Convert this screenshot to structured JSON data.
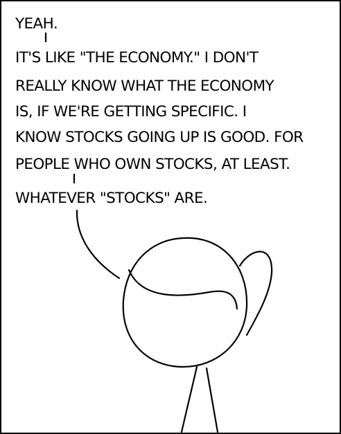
{
  "dialogue": {
    "line_1": "YEAH.",
    "line_2": "IT'S LIKE \"THE ECONOMY.\" I DON'T",
    "line_3": "REALLY KNOW WHAT THE ECONOMY",
    "line_4": "IS, IF WE'RE GETTING SPECIFIC. I",
    "line_5": "KNOW STOCKS GOING UP IS GOOD. FOR",
    "line_6": "PEOPLE WHO OWN STOCKS, AT LEAST.",
    "line_7": "WHATEVER \"STOCKS\" ARE."
  }
}
